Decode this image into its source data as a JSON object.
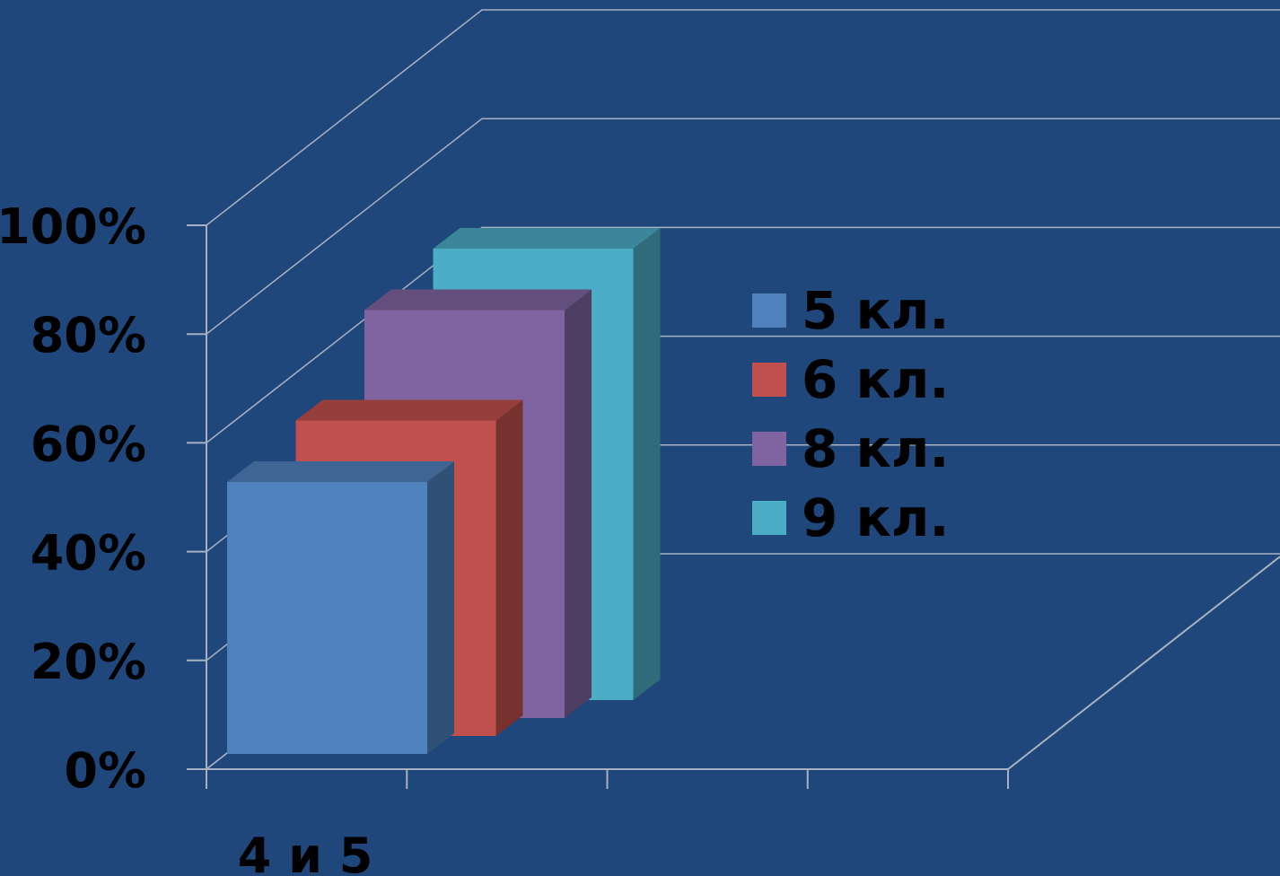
{
  "chart_data": {
    "type": "bar",
    "categories": [
      "4 и 5"
    ],
    "series": [
      {
        "name": "5 кл.",
        "values": [
          50
        ],
        "color": "#4f81bd"
      },
      {
        "name": "6 кл.",
        "values": [
          58
        ],
        "color": "#c0504d"
      },
      {
        "name": "8 кл.",
        "values": [
          75
        ],
        "color": "#8064a2"
      },
      {
        "name": "9 кл.",
        "values": [
          83
        ],
        "color": "#4bacc6"
      }
    ],
    "y_ticks": [
      "0%",
      "20%",
      "40%",
      "60%",
      "80%",
      "100%"
    ],
    "ylim": [
      0,
      100
    ],
    "y_unit": "%",
    "grid": true,
    "legend_position": "right",
    "style": "3d-clustered-column",
    "background_color": "#1f477b"
  }
}
